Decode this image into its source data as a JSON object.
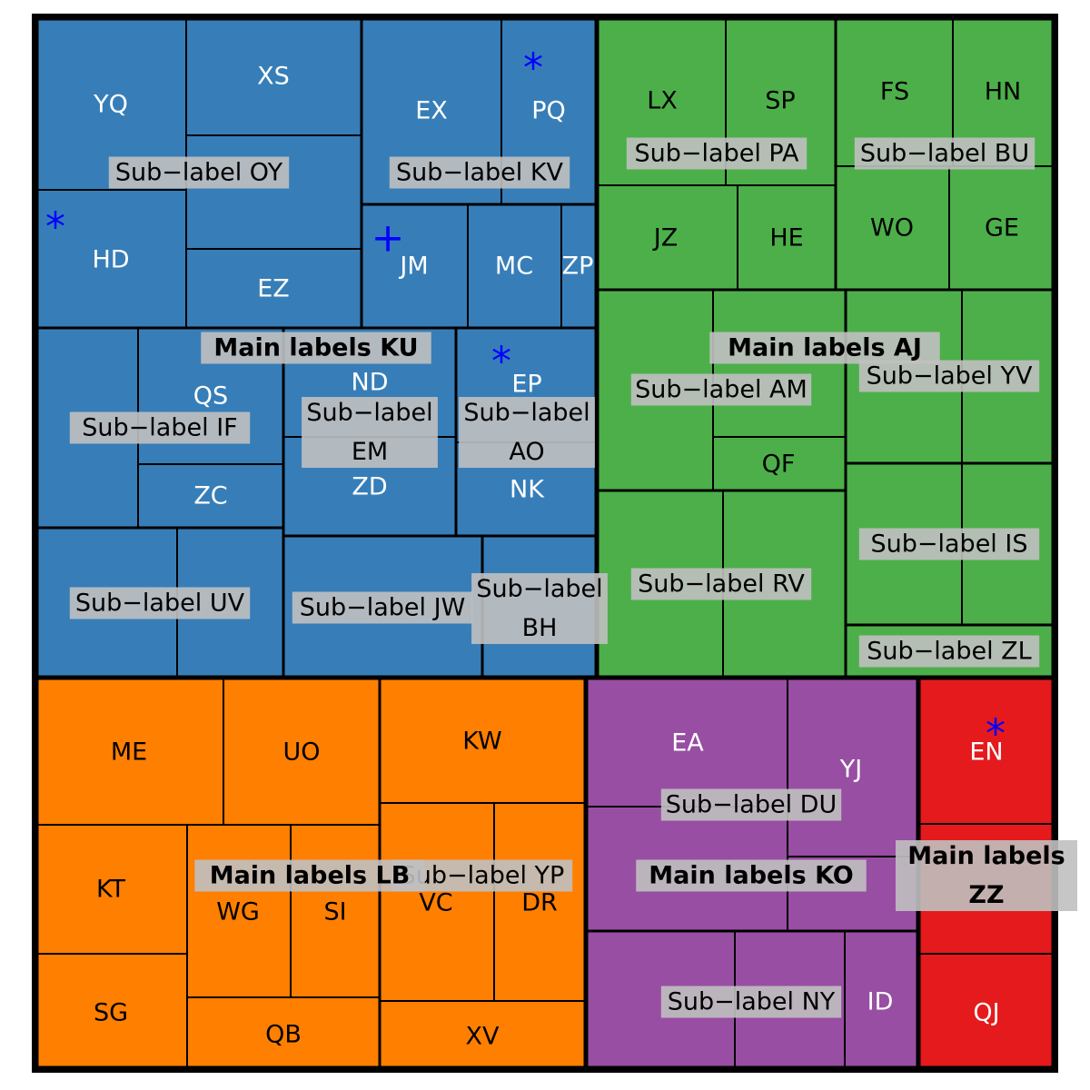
{
  "chart_data": {
    "type": "treemap",
    "title": "",
    "colors": {
      "KU": "#377eb8",
      "AJ": "#4daf4a",
      "LB": "#ff7f00",
      "KO": "#984ea3",
      "ZZ": "#e41a1c",
      "label_bg": "#c0c0c0",
      "marker": "#0000ff"
    },
    "groups": [
      {
        "id": "KU",
        "label": "Main labels KU",
        "color": "#377eb8",
        "text_color": "#ffffff",
        "subgroups": [
          {
            "id": "OY",
            "label": "Sub-label OY",
            "leaves": [
              {
                "label": "YQ"
              },
              {
                "label": "XS"
              },
              {
                "label": "HD",
                "marker": "*"
              },
              {
                "label": ""
              },
              {
                "label": "EZ"
              }
            ]
          },
          {
            "id": "KV",
            "label": "Sub-label KV",
            "leaves": [
              {
                "label": "EX"
              },
              {
                "label": "PQ",
                "marker": "*"
              }
            ]
          },
          {
            "id": "KV2",
            "label": "",
            "leaves": [
              {
                "label": "JM",
                "marker": "+"
              },
              {
                "label": "MC"
              },
              {
                "label": "ZP"
              }
            ]
          },
          {
            "id": "IF",
            "label": "Sub-label IF",
            "leaves": [
              {
                "label": ""
              },
              {
                "label": "QS"
              },
              {
                "label": "ZC"
              }
            ]
          },
          {
            "id": "EM",
            "label": "Sub-label EM",
            "leaves": [
              {
                "label": "ND"
              },
              {
                "label": "ZD"
              }
            ]
          },
          {
            "id": "AO",
            "label": "Sub-label AO",
            "leaves": [
              {
                "label": "EP",
                "marker": "*"
              },
              {
                "label": "NK"
              }
            ]
          },
          {
            "id": "UV",
            "label": "Sub-label UV",
            "leaves": [
              {
                "label": ""
              },
              {
                "label": ""
              }
            ]
          },
          {
            "id": "JW",
            "label": "Sub-label JW",
            "leaves": [
              {
                "label": ""
              }
            ]
          },
          {
            "id": "BH",
            "label": "Sub-label BH",
            "leaves": [
              {
                "label": ""
              }
            ]
          }
        ]
      },
      {
        "id": "AJ",
        "label": "Main labels AJ",
        "color": "#4daf4a",
        "text_color": "#000000",
        "subgroups": [
          {
            "id": "PA",
            "label": "Sub-label PA",
            "leaves": [
              {
                "label": "LX"
              },
              {
                "label": "SP"
              },
              {
                "label": "JZ"
              },
              {
                "label": "HE"
              }
            ]
          },
          {
            "id": "BU",
            "label": "Sub-label BU",
            "leaves": [
              {
                "label": "FS"
              },
              {
                "label": "HN"
              },
              {
                "label": "WO"
              },
              {
                "label": "GE"
              }
            ]
          },
          {
            "id": "AM",
            "label": "Sub-label AM",
            "leaves": [
              {
                "label": ""
              },
              {
                "label": ""
              },
              {
                "label": "QF"
              }
            ]
          },
          {
            "id": "YV",
            "label": "Sub-label YV",
            "leaves": [
              {
                "label": ""
              },
              {
                "label": ""
              }
            ]
          },
          {
            "id": "RV",
            "label": "Sub-label RV",
            "leaves": [
              {
                "label": ""
              },
              {
                "label": ""
              }
            ]
          },
          {
            "id": "IS",
            "label": "Sub-label IS",
            "leaves": [
              {
                "label": ""
              },
              {
                "label": ""
              }
            ]
          },
          {
            "id": "ZL",
            "label": "Sub-label ZL",
            "leaves": [
              {
                "label": ""
              }
            ]
          }
        ]
      },
      {
        "id": "LB",
        "label": "Main labels LB",
        "color": "#ff7f00",
        "text_color": "#000000",
        "subgroups": [
          {
            "id": "LB1",
            "label": "",
            "leaves": [
              {
                "label": "ME"
              },
              {
                "label": "UO"
              },
              {
                "label": "KT"
              },
              {
                "label": "WG"
              },
              {
                "label": "SI"
              },
              {
                "label": "SG"
              },
              {
                "label": "QB"
              }
            ]
          },
          {
            "id": "YP",
            "label": "Sub-label YP",
            "leaves": [
              {
                "label": "KW"
              },
              {
                "label": "VC"
              },
              {
                "label": "DR"
              },
              {
                "label": "XV"
              }
            ]
          }
        ]
      },
      {
        "id": "KO",
        "label": "Main labels KO",
        "color": "#984ea3",
        "text_color": "#ffffff",
        "subgroups": [
          {
            "id": "DU",
            "label": "Sub-label DU",
            "leaves": [
              {
                "label": "EA"
              },
              {
                "label": "YJ"
              },
              {
                "label": ""
              },
              {
                "label": ""
              }
            ]
          },
          {
            "id": "NY",
            "label": "Sub-label NY",
            "leaves": [
              {
                "label": ""
              },
              {
                "label": ""
              },
              {
                "label": "ID"
              }
            ]
          }
        ]
      },
      {
        "id": "ZZ",
        "label": "Main labels ZZ",
        "color": "#e41a1c",
        "text_color": "#ffffff",
        "subgroups": [
          {
            "id": "ZZ1",
            "label": "",
            "leaves": [
              {
                "label": "EN",
                "marker": "*"
              },
              {
                "label": ""
              },
              {
                "label": "QJ"
              }
            ]
          }
        ]
      }
    ]
  }
}
